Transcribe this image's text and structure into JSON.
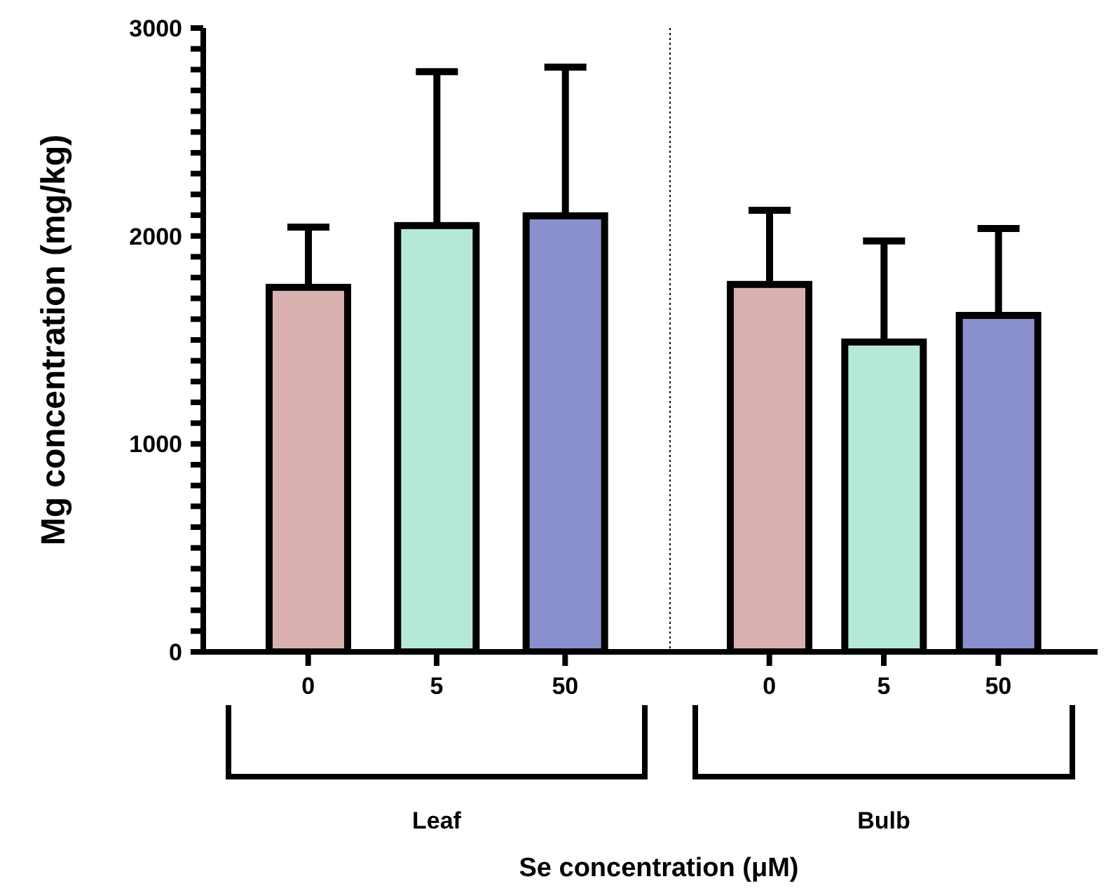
{
  "chart_data": [
    {
      "type": "bar",
      "xlabel": "Leaf",
      "ylabel": "Mg concentration (mg/kg)",
      "categories": [
        "0",
        "5",
        "50"
      ],
      "values": [
        1753,
        2050,
        2097
      ],
      "colors": [
        "#d8b0b0",
        "#b5e9d6",
        "#8a90ce"
      ],
      "errors": [
        [
          1753,
          2043
        ],
        [
          2050,
          2790
        ],
        [
          2097,
          2812
        ]
      ],
      "ylim": [
        0,
        3000
      ],
      "yticks": [
        0,
        {
          "value": 100,
          "label": null
        },
        {
          "value": 200,
          "label": null
        },
        {
          "value": 300,
          "label": null
        },
        {
          "value": 400,
          "label": null
        },
        {
          "value": 500,
          "label": null
        },
        {
          "value": 600,
          "label": null
        },
        {
          "value": 700,
          "label": null
        },
        {
          "value": 800,
          "label": null
        },
        {
          "value": 900,
          "label": null
        },
        1000,
        {
          "value": 1100,
          "label": null
        },
        {
          "value": 1200,
          "label": null
        },
        {
          "value": 1300,
          "label": null
        },
        {
          "value": 1400,
          "label": null
        },
        {
          "value": 1500,
          "label": null
        },
        {
          "value": 1600,
          "label": null
        },
        {
          "value": 1700,
          "label": null
        },
        {
          "value": 1800,
          "label": null
        },
        {
          "value": 1900,
          "label": null
        },
        2000,
        {
          "value": 2100,
          "label": null
        },
        {
          "value": 2200,
          "label": null
        },
        {
          "value": 2300,
          "label": null
        },
        {
          "value": 2400,
          "label": null
        },
        {
          "value": 2500,
          "label": null
        },
        {
          "value": 2600,
          "label": null
        },
        {
          "value": 2700,
          "label": null
        },
        {
          "value": 2800,
          "label": null
        },
        {
          "value": 2900,
          "label": null
        },
        3000
      ],
      "annotations": [
        "Se concentration (μM)"
      ]
    },
    {
      "type": "bar",
      "xlabel": "Bulb",
      "categories": [
        "0",
        "5",
        "50"
      ],
      "values": [
        1767,
        1490,
        1618
      ],
      "colors": [
        "#d8b0b0",
        "#b5e9d6",
        "#8a90ce"
      ],
      "errors": [
        [
          1767,
          2124
        ],
        [
          1490,
          1976
        ],
        [
          1618,
          2036
        ]
      ],
      "ylim": [
        0,
        3000
      ],
      "tick_labels": "x"
    }
  ]
}
